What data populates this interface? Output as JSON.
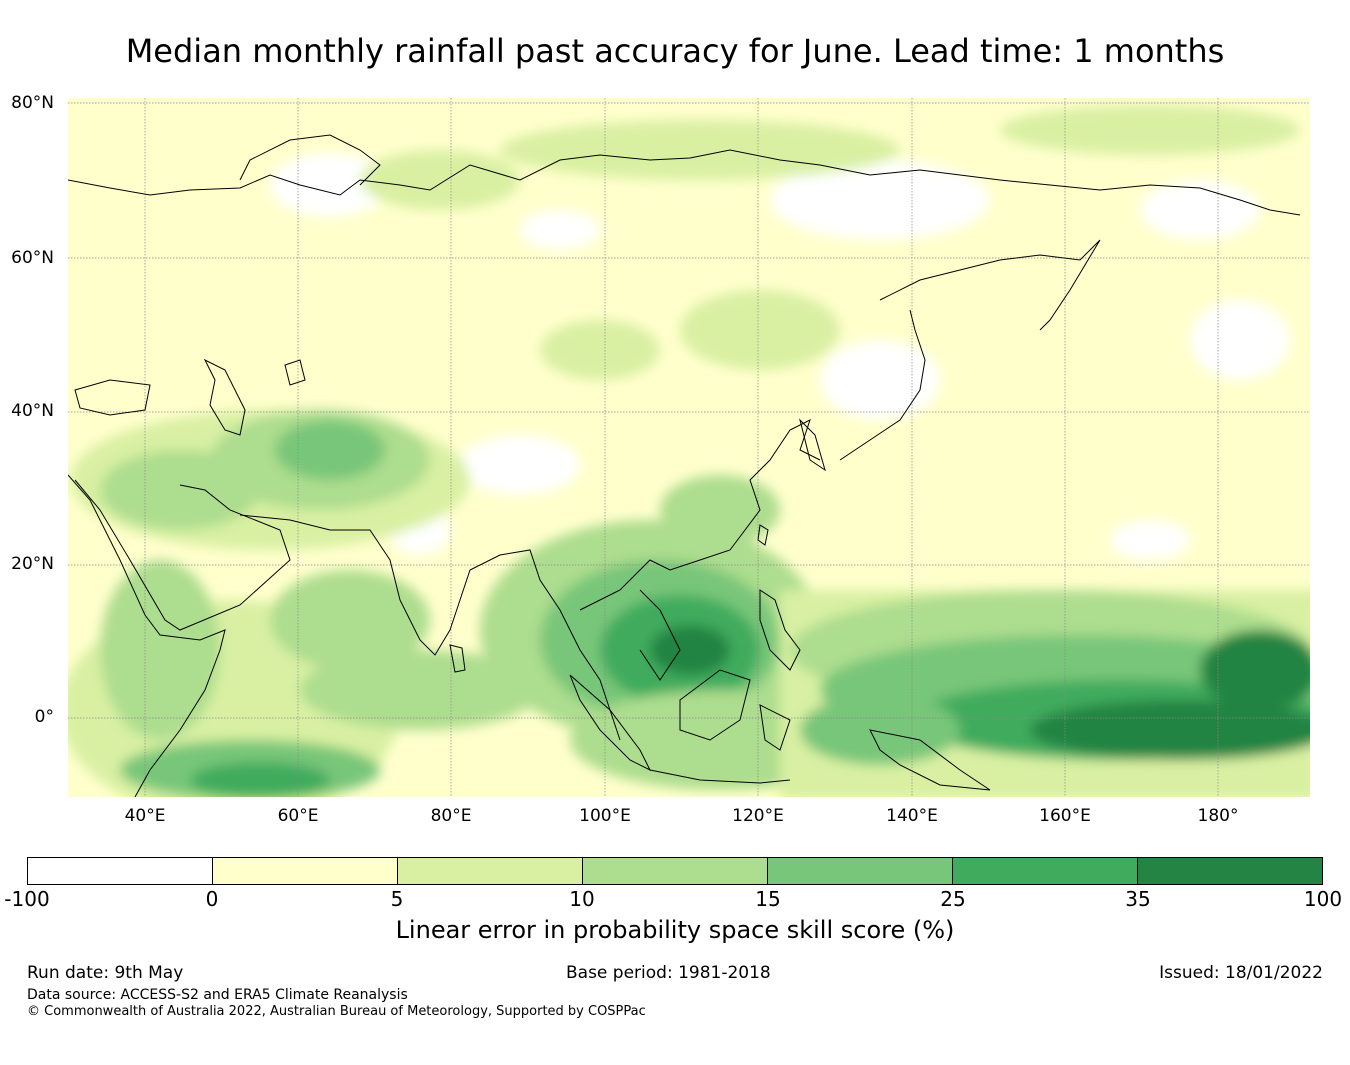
{
  "title": "Median monthly rainfall past accuracy for June. Lead time: 1 months",
  "map": {
    "lat_labels": [
      "80°N",
      "60°N",
      "40°N",
      "20°N",
      "0°"
    ],
    "lon_labels": [
      "40°E",
      "60°E",
      "80°E",
      "100°E",
      "120°E",
      "140°E",
      "160°E",
      "180°"
    ],
    "extent": {
      "lon": [
        30,
        192
      ],
      "lat": [
        -10,
        80
      ]
    }
  },
  "colorbar": {
    "ticks": [
      "-100",
      "0",
      "5",
      "10",
      "15",
      "25",
      "35",
      "100"
    ],
    "colors": [
      "#ffffff",
      "#ffffcc",
      "#d9f0a3",
      "#addd8e",
      "#78c679",
      "#41ab5d",
      "#238443"
    ],
    "label": "Linear error in probability space skill score (%)"
  },
  "footer": {
    "run_date": "Run date: 9th May",
    "base_period": "Base period: 1981-2018",
    "issued": "Issued: 18/01/2022",
    "data_source": "Data source: ACCESS-S2 and ERA5 Climate Reanalysis",
    "copyright": "© Commonwealth of Australia 2022, Australian Bureau of Meteorology, Supported by COSPPac"
  }
}
